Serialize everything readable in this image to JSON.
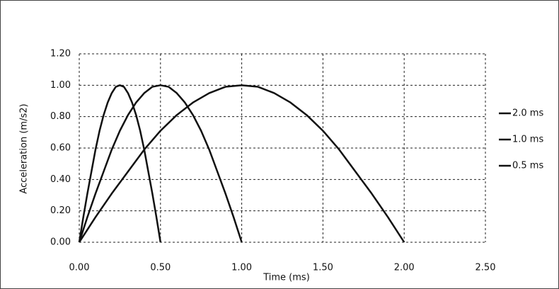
{
  "chart_data": {
    "type": "line",
    "x_label": "Time (ms)",
    "y_label": "Acceleration (m/s2)",
    "xlim": [
      0,
      2.5
    ],
    "ylim": [
      0,
      1.2
    ],
    "xticks": [
      {
        "value": 0,
        "label": "0.00"
      },
      {
        "value": 0.5,
        "label": "0.50"
      },
      {
        "value": 1,
        "label": "1.00"
      },
      {
        "value": 1.5,
        "label": "1.50"
      },
      {
        "value": 2,
        "label": "2.00"
      },
      {
        "value": 2.5,
        "label": "2.50"
      }
    ],
    "yticks": [
      {
        "value": 0,
        "label": "0.00"
      },
      {
        "value": 0.2,
        "label": "0.20"
      },
      {
        "value": 0.4,
        "label": "0.40"
      },
      {
        "value": 0.6,
        "label": "0.60"
      },
      {
        "value": 0.8,
        "label": "0.80"
      },
      {
        "value": 1,
        "label": "1.00"
      },
      {
        "value": 1.2,
        "label": "1.20"
      }
    ],
    "grid": true,
    "legend": "right",
    "series": [
      {
        "name": "2.0 ms",
        "color": "#111111",
        "x": [
          0,
          0.1,
          0.2,
          0.3,
          0.4,
          0.5,
          0.6,
          0.7,
          0.8,
          0.9,
          1.0,
          1.1,
          1.2,
          1.3,
          1.4,
          1.5,
          1.6,
          1.7,
          1.8,
          1.9,
          2.0
        ],
        "values": [
          0,
          0.16,
          0.31,
          0.45,
          0.59,
          0.71,
          0.81,
          0.89,
          0.95,
          0.99,
          1.0,
          0.99,
          0.95,
          0.89,
          0.81,
          0.71,
          0.59,
          0.45,
          0.31,
          0.16,
          0
        ]
      },
      {
        "name": "1.0 ms",
        "color": "#111111",
        "x": [
          0,
          0.05,
          0.1,
          0.15,
          0.2,
          0.25,
          0.3,
          0.35,
          0.4,
          0.45,
          0.5,
          0.55,
          0.6,
          0.65,
          0.7,
          0.75,
          0.8,
          0.85,
          0.9,
          0.95,
          1.0
        ],
        "values": [
          0,
          0.16,
          0.31,
          0.45,
          0.59,
          0.71,
          0.81,
          0.89,
          0.95,
          0.99,
          1.0,
          0.99,
          0.95,
          0.89,
          0.81,
          0.71,
          0.59,
          0.45,
          0.31,
          0.16,
          0
        ]
      },
      {
        "name": "0.5 ms",
        "color": "#111111",
        "x": [
          0,
          0.025,
          0.05,
          0.075,
          0.1,
          0.125,
          0.15,
          0.175,
          0.2,
          0.225,
          0.25,
          0.275,
          0.3,
          0.325,
          0.35,
          0.375,
          0.4,
          0.425,
          0.45,
          0.475,
          0.5
        ],
        "values": [
          0,
          0.16,
          0.31,
          0.45,
          0.59,
          0.71,
          0.81,
          0.89,
          0.95,
          0.99,
          1.0,
          0.99,
          0.95,
          0.89,
          0.81,
          0.71,
          0.59,
          0.45,
          0.31,
          0.16,
          0
        ]
      }
    ]
  }
}
